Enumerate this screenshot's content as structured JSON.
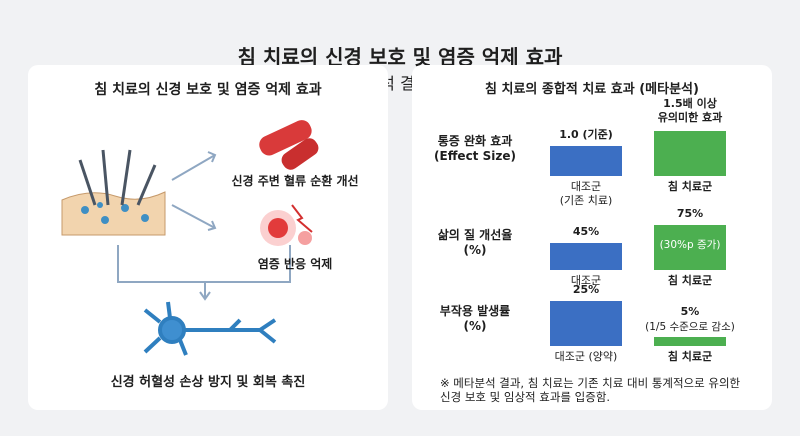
{
  "title": "침 치료의 신경 보호 및 염증 억제 효과",
  "subtitle": "(메타분석 결과 기반)",
  "left_panel": {
    "title": "침 치료의 신경 보호 및 염증 억제 효과",
    "effects": [
      "신경 주변 혈류 순환 개선",
      "염증 반응 억제"
    ],
    "outcome": "신경 허혈성 손상 방지 및 회복 촉진"
  },
  "right_panel": {
    "title": "침 치료의 종합적 치료 효과 (메타분석)",
    "footnote": "※ 메타분석 결과, 침 치료는 기존 치료 대비 통계적으로 유의한\n신경 보호 및 임상적 효과를 입증함."
  },
  "chart_data": [
    {
      "type": "bar",
      "title": "통증 완화 효과\n(Effect Size)",
      "categories": [
        "대조군\n(기존 치료)",
        "침 치료군"
      ],
      "values": [
        1.0,
        1.5
      ],
      "value_labels": [
        "1.0 (기준)",
        "1.5배 이상\n유의미한 효과"
      ],
      "colors": [
        "#3b6fc3",
        "#4caf50"
      ]
    },
    {
      "type": "bar",
      "title": "삶의 질 개선율\n(%)",
      "categories": [
        "대조군",
        "침 치료군"
      ],
      "values": [
        45,
        75
      ],
      "value_labels": [
        "45%",
        "75%"
      ],
      "annotation": "(30%p 증가)",
      "colors": [
        "#3b6fc3",
        "#4caf50"
      ]
    },
    {
      "type": "bar",
      "title": "부작용 발생률\n(%)",
      "categories": [
        "대조군 (양약)",
        "침 치료군"
      ],
      "values": [
        25,
        5
      ],
      "value_labels": [
        "25%",
        "5%"
      ],
      "annotation": "(1/5 수준으로 감소)",
      "colors": [
        "#3b6fc3",
        "#4caf50"
      ]
    }
  ]
}
